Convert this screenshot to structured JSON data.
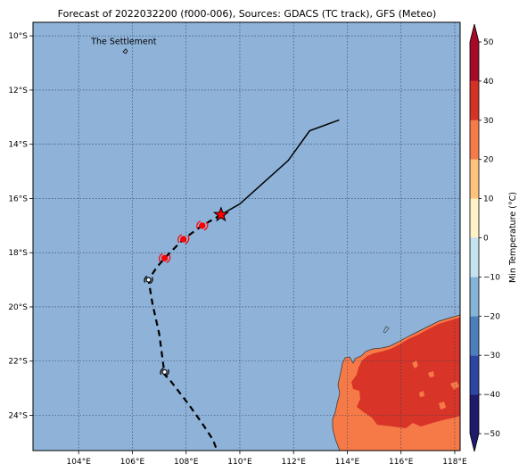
{
  "title": "Forecast of 2022032200 (f000-006), Sources: GDACS (TC track), GFS (Meteo)",
  "map": {
    "lon_range": [
      102.3,
      118.2
    ],
    "lat_range": [
      -25.3,
      -9.5
    ],
    "lon_ticks": [
      104,
      106,
      108,
      110,
      112,
      114,
      116,
      118
    ],
    "lat_ticks": [
      -10,
      -12,
      -14,
      -16,
      -18,
      -20,
      -22,
      -24
    ],
    "lon_tick_labels": [
      "104°E",
      "106°E",
      "108°E",
      "110°E",
      "112°E",
      "114°E",
      "116°E",
      "118°E"
    ],
    "lat_tick_labels": [
      "10°S",
      "12°S",
      "14°S",
      "16°S",
      "18°S",
      "20°S",
      "22°S",
      "24°S"
    ],
    "gridlines": "dotted",
    "ocean_color": "#8eb2d8"
  },
  "place_label": {
    "name": "The Settlement",
    "lon": 105.68,
    "lat": -10.43
  },
  "track": {
    "past": [
      [
        113.7,
        -13.1
      ],
      [
        112.6,
        -13.5
      ],
      [
        111.8,
        -14.6
      ],
      [
        110.9,
        -15.4
      ],
      [
        110.0,
        -16.2
      ],
      [
        109.3,
        -16.6
      ]
    ],
    "forecast": [
      [
        109.3,
        -16.6
      ],
      [
        108.6,
        -17.0
      ],
      [
        107.9,
        -17.5
      ],
      [
        107.2,
        -18.2
      ],
      [
        106.9,
        -18.55
      ],
      [
        106.6,
        -19.0
      ],
      [
        106.75,
        -19.9
      ],
      [
        107.0,
        -21.0
      ],
      [
        107.2,
        -22.5
      ],
      [
        107.4,
        -22.7
      ],
      [
        108.1,
        -23.6
      ],
      [
        108.6,
        -24.3
      ],
      [
        109.0,
        -24.9
      ],
      [
        109.15,
        -25.3
      ]
    ],
    "current_position": {
      "lon": 109.3,
      "lat": -16.6,
      "symbol": "star"
    },
    "cyclone_markers": [
      {
        "lon": 108.6,
        "lat": -17.0
      },
      {
        "lon": 107.9,
        "lat": -17.5
      },
      {
        "lon": 107.2,
        "lat": -18.2
      }
    ],
    "low_markers": [
      {
        "lon": 106.6,
        "lat": -19.0
      },
      {
        "lon": 107.2,
        "lat": -22.4
      }
    ]
  },
  "colorbar": {
    "label": "Min Temperature (°C)",
    "min": -50,
    "max": 50,
    "ticks": [
      50,
      40,
      30,
      20,
      10,
      0,
      -10,
      -20,
      -30,
      -40,
      -50
    ],
    "tick_labels": [
      "50",
      "40",
      "30",
      "20",
      "10",
      "0",
      "−10",
      "−20",
      "−30",
      "−40",
      "−50"
    ],
    "colors": [
      "#1e1a6c",
      "#2c47a2",
      "#4c7fbb",
      "#84b5d8",
      "#c2e3ef",
      "#f1fafb",
      "#fef2c6",
      "#fdc37c",
      "#f57c4a",
      "#d53227",
      "#a50a26"
    ]
  },
  "land": {
    "warm_fill": "#f67a48",
    "hot_fill": "#d83427"
  }
}
